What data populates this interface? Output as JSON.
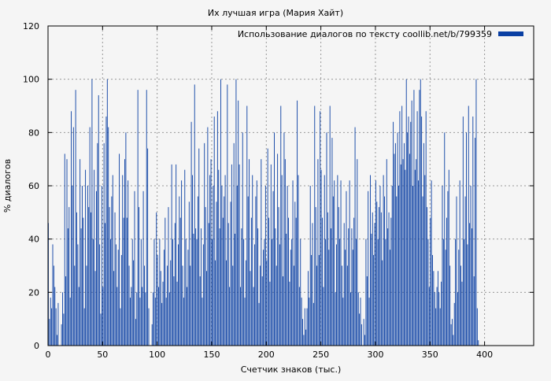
{
  "chart_data": {
    "type": "bar",
    "title": "Их лучшая игра (Мария Хайт)",
    "xlabel": "Счетчик знаков (тыс.)",
    "ylabel": "% диалогов",
    "xlim": [
      0,
      445
    ],
    "ylim": [
      0,
      120
    ],
    "xticks": [
      0,
      50,
      100,
      150,
      200,
      250,
      300,
      350,
      400
    ],
    "yticks": [
      0,
      20,
      40,
      60,
      80,
      100,
      120
    ],
    "grid": true,
    "legend_position": "top-right",
    "colors": {
      "bar": "#0a3fa3",
      "grid": "#999999",
      "axis": "#000000",
      "background": "#f5f5f5"
    },
    "series": [
      {
        "name": "Использование диалогов по тексту coollib.net/b/799359",
        "bar_width": 1,
        "x_start": 0,
        "values": [
          46,
          10,
          18,
          14,
          38,
          30,
          22,
          14,
          4,
          16,
          0,
          0,
          8,
          20,
          12,
          72,
          26,
          70,
          44,
          52,
          18,
          88,
          60,
          82,
          30,
          96,
          50,
          38,
          22,
          70,
          44,
          60,
          48,
          14,
          66,
          30,
          60,
          52,
          82,
          50,
          100,
          40,
          66,
          28,
          58,
          76,
          94,
          38,
          12,
          60,
          22,
          76,
          46,
          86,
          100,
          82,
          52,
          40,
          56,
          64,
          28,
          50,
          38,
          22,
          36,
          72,
          14,
          34,
          64,
          48,
          70,
          80,
          48,
          62,
          30,
          18,
          22,
          40,
          32,
          58,
          10,
          20,
          96,
          52,
          18,
          40,
          22,
          58,
          30,
          20,
          96,
          74,
          14,
          0,
          0,
          8,
          20,
          40,
          18,
          50,
          34,
          22,
          40,
          28,
          16,
          24,
          36,
          48,
          18,
          30,
          52,
          20,
          32,
          68,
          40,
          26,
          46,
          68,
          24,
          38,
          56,
          48,
          62,
          30,
          18,
          66,
          40,
          22,
          36,
          54,
          30,
          84,
          64,
          42,
          98,
          44,
          40,
          56,
          74,
          26,
          44,
          18,
          38,
          76,
          52,
          28,
          82,
          46,
          64,
          70,
          40,
          60,
          86,
          32,
          54,
          88,
          66,
          44,
          100,
          60,
          48,
          56,
          64,
          32,
          98,
          46,
          22,
          54,
          68,
          30,
          76,
          42,
          100,
          60,
          92,
          68,
          22,
          44,
          80,
          40,
          18,
          32,
          90,
          56,
          70,
          28,
          48,
          64,
          22,
          38,
          56,
          62,
          44,
          16,
          30,
          70,
          26,
          36,
          40,
          60,
          32,
          74,
          48,
          24,
          68,
          40,
          58,
          80,
          44,
          30,
          72,
          52,
          38,
          90,
          64,
          26,
          80,
          70,
          42,
          60,
          48,
          24,
          36,
          40,
          62,
          30,
          54,
          48,
          92,
          64,
          22,
          40,
          18,
          10,
          4,
          14,
          6,
          14,
          28,
          18,
          60,
          34,
          46,
          16,
          90,
          52,
          30,
          70,
          34,
          88,
          66,
          48,
          22,
          64,
          40,
          80,
          50,
          36,
          90,
          44,
          78,
          56,
          62,
          20,
          38,
          64,
          52,
          40,
          62,
          30,
          18,
          46,
          36,
          58,
          30,
          44,
          62,
          20,
          44,
          36,
          48,
          82,
          40,
          70,
          20,
          12,
          18,
          8,
          0,
          10,
          4,
          40,
          26,
          58,
          18,
          64,
          42,
          50,
          34,
          46,
          62,
          54,
          40,
          52,
          60,
          50,
          32,
          64,
          56,
          40,
          70,
          44,
          50,
          36,
          48,
          60,
          84,
          72,
          76,
          56,
          80,
          60,
          88,
          68,
          90,
          70,
          76,
          66,
          100,
          80,
          86,
          72,
          84,
          92,
          60,
          96,
          66,
          70,
          88,
          62,
          96,
          100,
          86,
          56,
          76,
          64,
          88,
          52,
          40,
          22,
          48,
          62,
          34,
          28,
          20,
          14,
          22,
          28,
          20,
          14,
          24,
          60,
          40,
          80,
          36,
          48,
          58,
          66,
          30,
          8,
          10,
          4,
          16,
          40,
          56,
          20,
          36,
          62,
          30,
          24,
          86,
          40,
          56,
          80,
          38,
          90,
          46,
          60,
          44,
          86,
          26,
          78,
          100,
          14,
          2
        ]
      }
    ]
  }
}
